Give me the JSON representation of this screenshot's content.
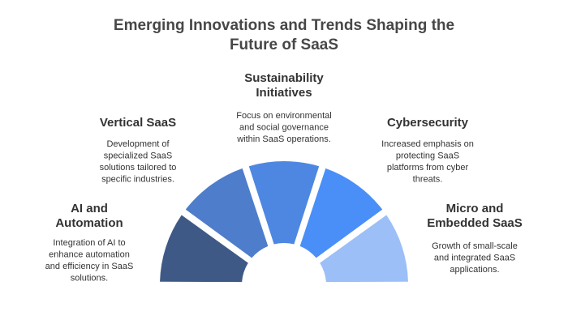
{
  "title": [
    "Emerging Innovations and Trends Shaping the",
    "Future of SaaS"
  ],
  "items": [
    {
      "title": [
        "AI and",
        "Automation"
      ],
      "description": [
        "Integration of AI to",
        "enhance automation",
        "and efficiency in SaaS",
        "solutions."
      ]
    },
    {
      "title": [
        "Vertical SaaS"
      ],
      "description": [
        "Development of",
        "specialized SaaS",
        "solutions tailored to",
        "specific industries."
      ]
    },
    {
      "title": [
        "Sustainability",
        "Initiatives"
      ],
      "description": [
        "Focus on environmental",
        "and social governance",
        "within SaaS operations."
      ]
    },
    {
      "title": [
        "Cybersecurity"
      ],
      "description": [
        "Increased emphasis on",
        "protecting SaaS",
        "platforms from cyber",
        "threats."
      ]
    },
    {
      "title": [
        "Micro and",
        "Embedded SaaS"
      ],
      "description": [
        "Growth of small-scale",
        "and integrated SaaS",
        "applications."
      ]
    }
  ]
}
